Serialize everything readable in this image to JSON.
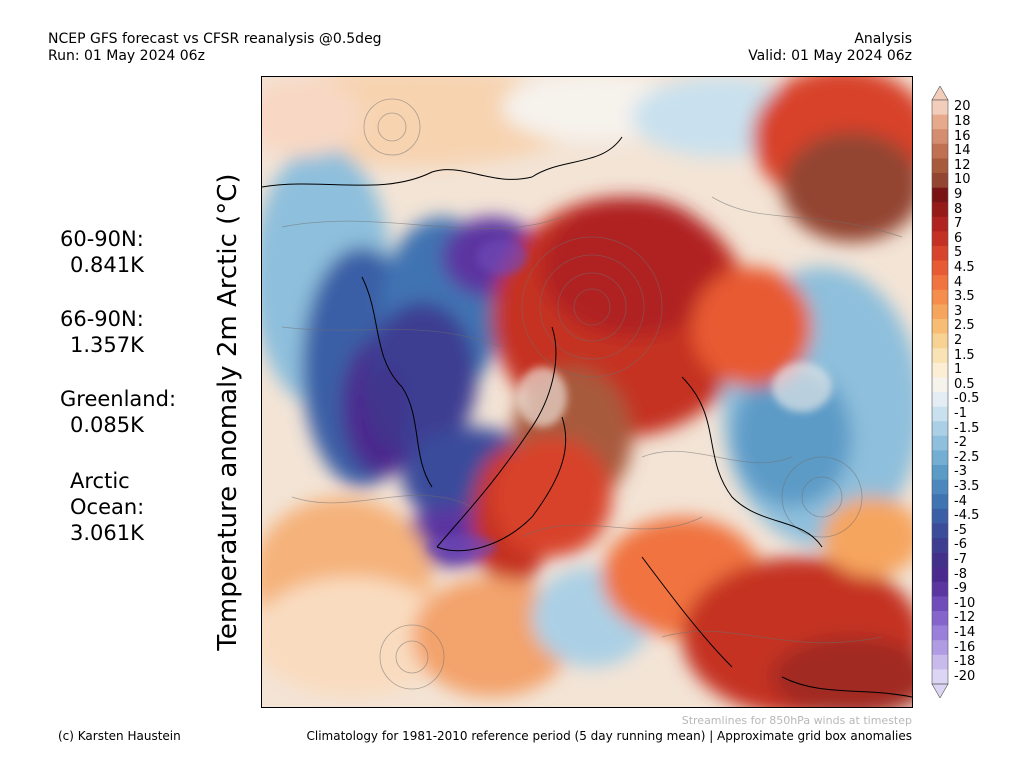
{
  "header": {
    "title_line1": "NCEP GFS forecast vs CFSR reanalysis @0.5deg",
    "title_line2": "Run: 01 May 2024 06z",
    "right_line1": "Analysis",
    "right_line2": "Valid: 01 May 2024 06z"
  },
  "axis_label": "Temperature anomaly 2m Arctic (°C)",
  "stats": [
    {
      "label": "60-90N:",
      "value": "0.841K"
    },
    {
      "label": "66-90N:",
      "value": "1.357K"
    },
    {
      "label": "Greenland:",
      "value": "0.085K"
    },
    {
      "label": "Arctic",
      "label2": "Ocean:",
      "value": "3.061K"
    }
  ],
  "colorbar": {
    "labels": [
      "20",
      "18",
      "16",
      "14",
      "12",
      "10",
      "9",
      "8",
      "7",
      "6",
      "5",
      "4.5",
      "4",
      "3.5",
      "3",
      "2.5",
      "2",
      "1.5",
      "1",
      "0.5",
      "-0.5",
      "-1",
      "-1.5",
      "-2",
      "-2.5",
      "-3",
      "-3.5",
      "-4",
      "-4.5",
      "-5",
      "-6",
      "-7",
      "-8",
      "-9",
      "-10",
      "-12",
      "-14",
      "-16",
      "-18",
      "-20"
    ],
    "colors": [
      "#f3cdbb",
      "#e6a98c",
      "#d48d6f",
      "#c07152",
      "#a85a3d",
      "#934532",
      "#7a1414",
      "#951a18",
      "#b02320",
      "#c53024",
      "#d8432c",
      "#e85a33",
      "#f07340",
      "#f58d4d",
      "#f6a55e",
      "#f7bd74",
      "#f8d292",
      "#f9e2b3",
      "#fbeed4",
      "#f6f2ec",
      "#e3edf3",
      "#c9e1ee",
      "#abd0e5",
      "#8ebfdc",
      "#74aed2",
      "#5d9bc7",
      "#4c88bd",
      "#3f73b2",
      "#3a5fa6",
      "#3b4c9b",
      "#3d3d92",
      "#43308a",
      "#4b2a8e",
      "#5b36a1",
      "#6f4cb9",
      "#8565cc",
      "#9a80da",
      "#b09ce3",
      "#c8bbec",
      "#dcd5f3"
    ]
  },
  "footer": {
    "streamline_note": "Streamlines for 850hPa winds at timestep",
    "credit": "(c) Karsten Haustein",
    "climatology": "Climatology for 1981-2010 reference period (5 day running mean) | Approximate grid box anomalies"
  },
  "colors": {
    "warm_dark": "#b02320",
    "warm_mid": "#e85a33",
    "warm_light": "#f6a55e",
    "cold_dark": "#43308a",
    "cold_mid": "#3a5fa6",
    "cold_light": "#abd0e5",
    "neutral": "#f6f2ec"
  }
}
